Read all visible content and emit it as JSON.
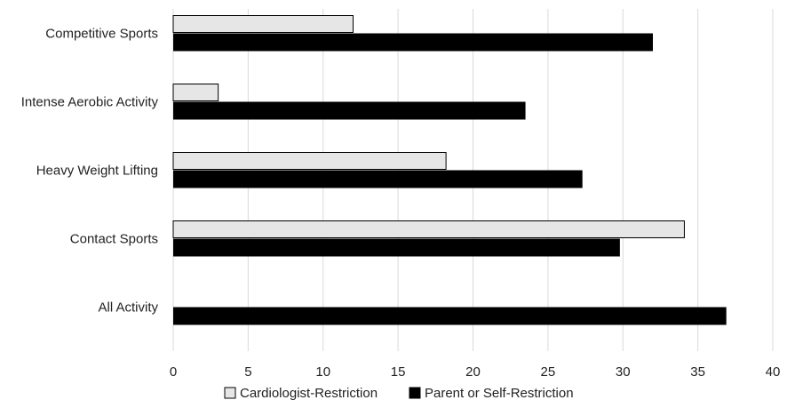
{
  "chart_data": {
    "type": "bar",
    "orientation": "horizontal",
    "categories": [
      "Competitive Sports",
      "Intense Aerobic Activity",
      "Heavy Weight Lifting",
      "Contact Sports",
      "All Activity"
    ],
    "series": [
      {
        "name": "Cardiologist-Restriction",
        "color": "#e6e6e6",
        "stroke": "#000000",
        "values": [
          12,
          3,
          18.2,
          34.1,
          0
        ]
      },
      {
        "name": "Parent or Self-Restriction",
        "color": "#000000",
        "stroke": "#000000",
        "values": [
          32,
          23.5,
          27.3,
          29.8,
          36.9
        ]
      }
    ],
    "xlim": [
      0,
      40
    ],
    "xticks": [
      "0",
      "5",
      "10",
      "15",
      "20",
      "25",
      "30",
      "35",
      "40"
    ],
    "grid": true,
    "legend": "bottom",
    "title": "",
    "xlabel": "",
    "ylabel": ""
  }
}
